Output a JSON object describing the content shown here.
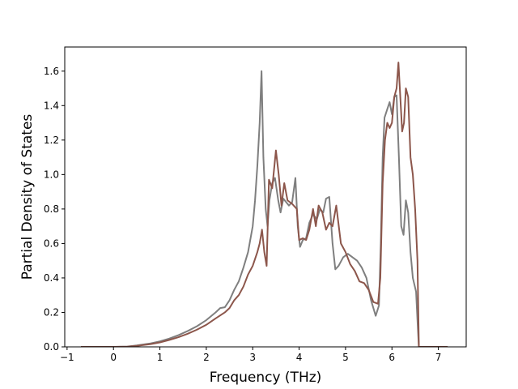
{
  "chart_data": {
    "type": "line",
    "title": "",
    "xlabel": "Frequency (THz)",
    "ylabel": "Partial Density of States",
    "xlim": [
      -1.05,
      7.6
    ],
    "ylim": [
      0.0,
      1.74
    ],
    "xticks": [
      -1,
      0,
      1,
      2,
      3,
      4,
      5,
      6,
      7
    ],
    "yticks": [
      0.0,
      0.2,
      0.4,
      0.6,
      0.8,
      1.0,
      1.2,
      1.4,
      1.6
    ],
    "ytick_labels": [
      "0.0",
      "0.2",
      "0.4",
      "0.6",
      "0.8",
      "1.0",
      "1.2",
      "1.4",
      "1.6"
    ],
    "grid": false,
    "legend": "none",
    "series": [
      {
        "color": "#7f7f7f",
        "points": [
          [
            -0.7,
            0
          ],
          [
            0,
            0
          ],
          [
            0.3,
            0.002
          ],
          [
            0.5,
            0.008
          ],
          [
            0.8,
            0.02
          ],
          [
            1.0,
            0.032
          ],
          [
            1.2,
            0.048
          ],
          [
            1.4,
            0.068
          ],
          [
            1.6,
            0.092
          ],
          [
            1.8,
            0.12
          ],
          [
            2.0,
            0.155
          ],
          [
            2.2,
            0.2
          ],
          [
            2.3,
            0.225
          ],
          [
            2.4,
            0.23
          ],
          [
            2.5,
            0.27
          ],
          [
            2.6,
            0.33
          ],
          [
            2.7,
            0.38
          ],
          [
            2.8,
            0.46
          ],
          [
            2.9,
            0.55
          ],
          [
            3.0,
            0.7
          ],
          [
            3.05,
            0.85
          ],
          [
            3.1,
            1.05
          ],
          [
            3.15,
            1.3
          ],
          [
            3.19,
            1.6
          ],
          [
            3.23,
            1.1
          ],
          [
            3.28,
            0.8
          ],
          [
            3.32,
            0.7
          ],
          [
            3.36,
            0.85
          ],
          [
            3.42,
            0.95
          ],
          [
            3.48,
            0.98
          ],
          [
            3.55,
            0.85
          ],
          [
            3.6,
            0.78
          ],
          [
            3.66,
            0.86
          ],
          [
            3.72,
            0.84
          ],
          [
            3.78,
            0.82
          ],
          [
            3.85,
            0.84
          ],
          [
            3.92,
            0.98
          ],
          [
            3.97,
            0.7
          ],
          [
            4.02,
            0.58
          ],
          [
            4.08,
            0.62
          ],
          [
            4.15,
            0.63
          ],
          [
            4.22,
            0.72
          ],
          [
            4.3,
            0.77
          ],
          [
            4.38,
            0.74
          ],
          [
            4.45,
            0.8
          ],
          [
            4.52,
            0.78
          ],
          [
            4.58,
            0.86
          ],
          [
            4.65,
            0.87
          ],
          [
            4.72,
            0.6
          ],
          [
            4.78,
            0.45
          ],
          [
            4.85,
            0.47
          ],
          [
            4.95,
            0.52
          ],
          [
            5.05,
            0.54
          ],
          [
            5.15,
            0.52
          ],
          [
            5.25,
            0.5
          ],
          [
            5.35,
            0.46
          ],
          [
            5.45,
            0.4
          ],
          [
            5.55,
            0.27
          ],
          [
            5.65,
            0.18
          ],
          [
            5.72,
            0.24
          ],
          [
            5.76,
            0.6
          ],
          [
            5.8,
            1.1
          ],
          [
            5.84,
            1.33
          ],
          [
            5.9,
            1.38
          ],
          [
            5.95,
            1.42
          ],
          [
            6.0,
            1.35
          ],
          [
            6.05,
            1.45
          ],
          [
            6.1,
            1.46
          ],
          [
            6.15,
            1.1
          ],
          [
            6.2,
            0.7
          ],
          [
            6.25,
            0.65
          ],
          [
            6.3,
            0.85
          ],
          [
            6.35,
            0.78
          ],
          [
            6.4,
            0.55
          ],
          [
            6.45,
            0.4
          ],
          [
            6.52,
            0.32
          ],
          [
            6.56,
            0.1
          ],
          [
            6.58,
            0
          ],
          [
            7.2,
            0
          ]
        ]
      },
      {
        "color": "#8c564b",
        "points": [
          [
            -0.7,
            0
          ],
          [
            0,
            0
          ],
          [
            0.3,
            0.001
          ],
          [
            0.5,
            0.006
          ],
          [
            0.8,
            0.016
          ],
          [
            1.0,
            0.026
          ],
          [
            1.2,
            0.04
          ],
          [
            1.4,
            0.056
          ],
          [
            1.6,
            0.076
          ],
          [
            1.8,
            0.1
          ],
          [
            2.0,
            0.128
          ],
          [
            2.2,
            0.165
          ],
          [
            2.4,
            0.2
          ],
          [
            2.5,
            0.225
          ],
          [
            2.6,
            0.27
          ],
          [
            2.7,
            0.3
          ],
          [
            2.8,
            0.35
          ],
          [
            2.9,
            0.42
          ],
          [
            3.0,
            0.47
          ],
          [
            3.1,
            0.55
          ],
          [
            3.15,
            0.6
          ],
          [
            3.2,
            0.68
          ],
          [
            3.25,
            0.55
          ],
          [
            3.3,
            0.47
          ],
          [
            3.35,
            0.97
          ],
          [
            3.42,
            0.92
          ],
          [
            3.5,
            1.14
          ],
          [
            3.56,
            1.0
          ],
          [
            3.62,
            0.82
          ],
          [
            3.68,
            0.95
          ],
          [
            3.75,
            0.85
          ],
          [
            3.85,
            0.83
          ],
          [
            3.95,
            0.8
          ],
          [
            4.0,
            0.62
          ],
          [
            4.08,
            0.63
          ],
          [
            4.15,
            0.62
          ],
          [
            4.22,
            0.68
          ],
          [
            4.3,
            0.8
          ],
          [
            4.36,
            0.7
          ],
          [
            4.42,
            0.82
          ],
          [
            4.5,
            0.78
          ],
          [
            4.58,
            0.68
          ],
          [
            4.65,
            0.72
          ],
          [
            4.72,
            0.7
          ],
          [
            4.8,
            0.82
          ],
          [
            4.9,
            0.6
          ],
          [
            5.0,
            0.55
          ],
          [
            5.1,
            0.48
          ],
          [
            5.2,
            0.44
          ],
          [
            5.3,
            0.38
          ],
          [
            5.4,
            0.37
          ],
          [
            5.5,
            0.33
          ],
          [
            5.6,
            0.26
          ],
          [
            5.7,
            0.25
          ],
          [
            5.75,
            0.4
          ],
          [
            5.8,
            0.95
          ],
          [
            5.85,
            1.2
          ],
          [
            5.9,
            1.3
          ],
          [
            5.95,
            1.27
          ],
          [
            6.0,
            1.3
          ],
          [
            6.05,
            1.45
          ],
          [
            6.1,
            1.5
          ],
          [
            6.14,
            1.65
          ],
          [
            6.18,
            1.45
          ],
          [
            6.22,
            1.25
          ],
          [
            6.26,
            1.3
          ],
          [
            6.3,
            1.5
          ],
          [
            6.35,
            1.45
          ],
          [
            6.4,
            1.1
          ],
          [
            6.45,
            1.0
          ],
          [
            6.5,
            0.8
          ],
          [
            6.55,
            0.5
          ],
          [
            6.58,
            0
          ],
          [
            7.2,
            0
          ]
        ]
      }
    ]
  }
}
